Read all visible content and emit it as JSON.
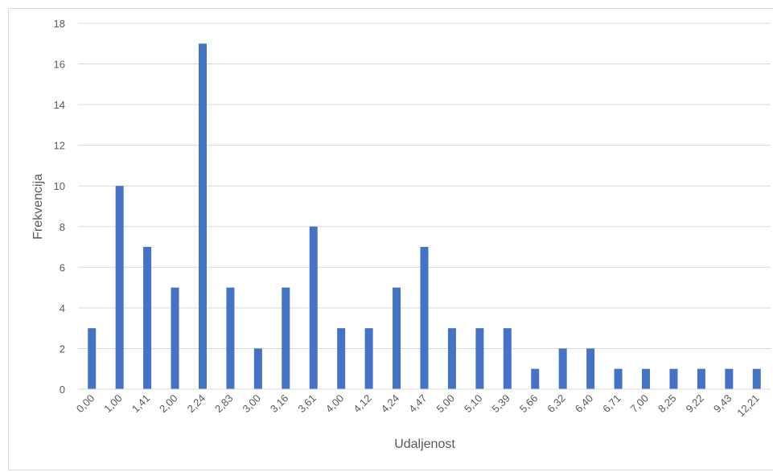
{
  "chart_data": {
    "type": "bar",
    "title": "",
    "xlabel": "Udaljenost",
    "ylabel": "Frekvencija",
    "categories": [
      "0,00",
      "1,00",
      "1,41",
      "2,00",
      "2,24",
      "2,83",
      "3,00",
      "3,16",
      "3,61",
      "4,00",
      "4,12",
      "4,24",
      "4,47",
      "5,00",
      "5,10",
      "5,39",
      "5,66",
      "6,32",
      "6,40",
      "6,71",
      "7,00",
      "8,25",
      "9,22",
      "9,43",
      "12,21"
    ],
    "values": [
      3,
      10,
      7,
      5,
      17,
      5,
      2,
      5,
      8,
      3,
      3,
      5,
      7,
      3,
      3,
      3,
      1,
      2,
      2,
      1,
      1,
      1,
      1,
      1,
      1
    ],
    "ylim": [
      0,
      18
    ],
    "yticks": [
      0,
      2,
      4,
      6,
      8,
      10,
      12,
      14,
      16,
      18
    ],
    "grid": true,
    "legend": "none",
    "bar_color": "#4472c4",
    "grid_color": "#d9d9d9",
    "text_color": "#595959"
  }
}
